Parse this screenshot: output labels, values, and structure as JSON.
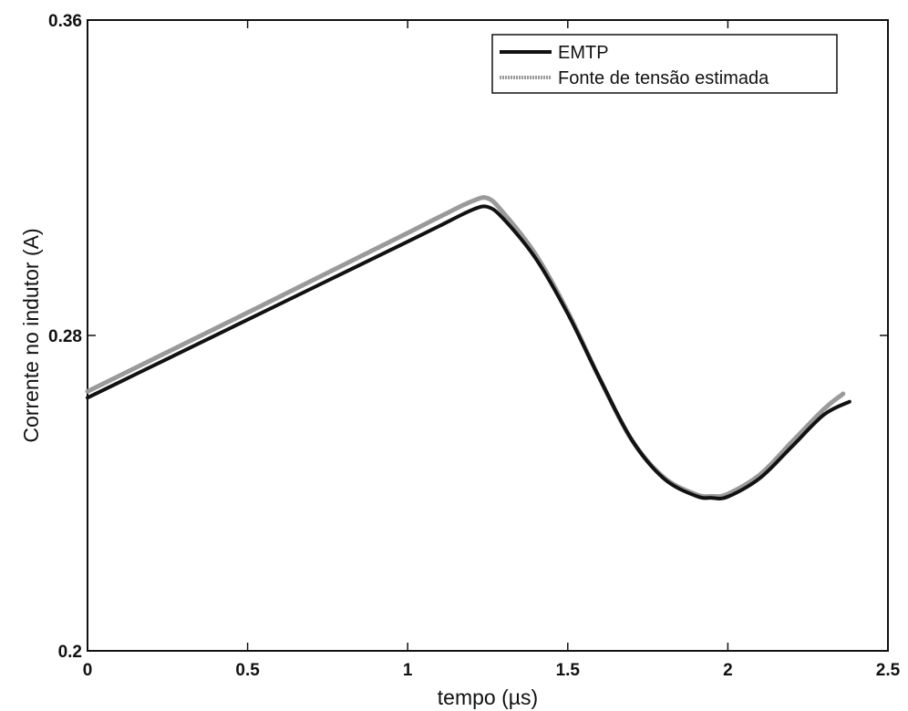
{
  "chart_data": {
    "type": "line",
    "xlabel": "tempo (µs)",
    "ylabel": "Corrente no indutor (A)",
    "xlim": [
      0,
      2.5
    ],
    "ylim": [
      0.2,
      0.36
    ],
    "xticks": [
      0,
      0.5,
      1,
      1.5,
      2,
      2.5
    ],
    "xtick_labels": [
      "0",
      "0.5",
      "1",
      "1.5",
      "2",
      "2.5"
    ],
    "yticks": [
      0.2,
      0.28,
      0.36
    ],
    "ytick_labels": [
      "0.2",
      "0.28",
      "0.36"
    ],
    "grid": false,
    "legend_position": "top-right",
    "series": [
      {
        "name": "EMTP",
        "color": "#111111",
        "x": [
          0,
          0.25,
          0.5,
          0.75,
          1.0,
          1.1,
          1.2,
          1.25,
          1.3,
          1.4,
          1.5,
          1.6,
          1.7,
          1.8,
          1.9,
          1.95,
          2.0,
          2.1,
          2.2,
          2.3,
          2.38
        ],
        "y": [
          0.2642,
          0.2741,
          0.284,
          0.2939,
          0.3038,
          0.3078,
          0.3118,
          0.3126,
          0.3095,
          0.2995,
          0.2855,
          0.269,
          0.2535,
          0.2437,
          0.2393,
          0.2388,
          0.2391,
          0.2438,
          0.2518,
          0.2599,
          0.2632
        ]
      },
      {
        "name": "Fonte de tensão estimada",
        "color": "#9a9a9a",
        "x": [
          0,
          0.25,
          0.5,
          0.75,
          1.0,
          1.1,
          1.2,
          1.25,
          1.3,
          1.4,
          1.5,
          1.6,
          1.7,
          1.8,
          1.9,
          1.95,
          2.0,
          2.1,
          2.2,
          2.3,
          2.36
        ],
        "y": [
          0.2658,
          0.2758,
          0.2858,
          0.2959,
          0.306,
          0.3101,
          0.314,
          0.3148,
          0.311,
          0.3005,
          0.286,
          0.269,
          0.2535,
          0.244,
          0.2397,
          0.2392,
          0.2398,
          0.2447,
          0.253,
          0.2613,
          0.2652
        ]
      }
    ]
  }
}
